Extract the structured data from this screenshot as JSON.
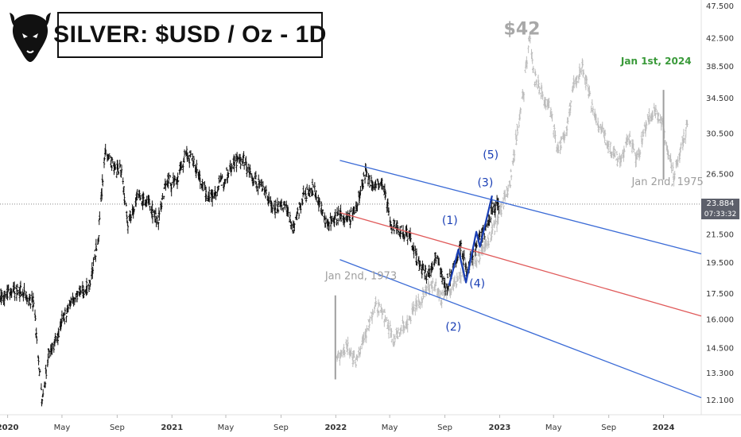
{
  "chart_data": {
    "type": "candlestick",
    "title": "SILVER: $USD / Oz - 1D",
    "y_axis": {
      "scale": "log",
      "ylim": [
        11.5,
        48.5
      ],
      "tick_labels": [
        "47.500",
        "42.500",
        "38.500",
        "34.500",
        "30.500",
        "26.500",
        "21.500",
        "19.500",
        "17.500",
        "16.000",
        "14.500",
        "13.300",
        "12.100"
      ],
      "tick_values": [
        47.5,
        42.5,
        38.5,
        34.5,
        30.5,
        26.5,
        21.5,
        19.5,
        17.5,
        16.0,
        14.5,
        13.3,
        12.1
      ]
    },
    "x_axis": {
      "range": [
        "2019-12-15",
        "2024-03-25"
      ],
      "tick_labels": [
        "2020",
        "May",
        "Sep",
        "2021",
        "May",
        "Sep",
        "2022",
        "May",
        "Sep",
        "2023",
        "May",
        "Sep",
        "2024"
      ],
      "tick_dates": [
        "2020-01-01",
        "2020-05-01",
        "2020-09-01",
        "2021-01-01",
        "2021-05-01",
        "2021-09-01",
        "2022-01-01",
        "2022-05-01",
        "2022-09-01",
        "2023-01-01",
        "2023-05-01",
        "2023-09-01",
        "2024-01-01"
      ]
    },
    "current_price": {
      "value": "23.884",
      "countdown": "07:33:32",
      "y": 23.884
    },
    "series": [
      {
        "style": "ohlc-black",
        "points": [
          {
            "x": "2019-12-15",
            "y": 17.2
          },
          {
            "x": "2020-01-10",
            "y": 17.8
          },
          {
            "x": "2020-02-05",
            "y": 17.6
          },
          {
            "x": "2020-02-28",
            "y": 17.0
          },
          {
            "x": "2020-03-18",
            "y": 12.0
          },
          {
            "x": "2020-04-01",
            "y": 14.2
          },
          {
            "x": "2020-04-20",
            "y": 15.0
          },
          {
            "x": "2020-05-15",
            "y": 16.8
          },
          {
            "x": "2020-06-10",
            "y": 17.6
          },
          {
            "x": "2020-07-01",
            "y": 18.0
          },
          {
            "x": "2020-07-20",
            "y": 21.0
          },
          {
            "x": "2020-08-06",
            "y": 29.0
          },
          {
            "x": "2020-08-25",
            "y": 27.0
          },
          {
            "x": "2020-09-10",
            "y": 27.0
          },
          {
            "x": "2020-09-25",
            "y": 22.5
          },
          {
            "x": "2020-10-15",
            "y": 24.5
          },
          {
            "x": "2020-11-10",
            "y": 24.0
          },
          {
            "x": "2020-11-30",
            "y": 22.5
          },
          {
            "x": "2020-12-20",
            "y": 26.0
          },
          {
            "x": "2021-01-10",
            "y": 25.5
          },
          {
            "x": "2021-02-01",
            "y": 28.5
          },
          {
            "x": "2021-02-20",
            "y": 27.5
          },
          {
            "x": "2021-03-15",
            "y": 25.0
          },
          {
            "x": "2021-04-01",
            "y": 24.5
          },
          {
            "x": "2021-04-25",
            "y": 26.0
          },
          {
            "x": "2021-05-20",
            "y": 27.8
          },
          {
            "x": "2021-06-10",
            "y": 27.8
          },
          {
            "x": "2021-07-01",
            "y": 26.0
          },
          {
            "x": "2021-07-25",
            "y": 25.3
          },
          {
            "x": "2021-08-15",
            "y": 23.5
          },
          {
            "x": "2021-09-10",
            "y": 23.8
          },
          {
            "x": "2021-09-28",
            "y": 22.0
          },
          {
            "x": "2021-10-20",
            "y": 24.5
          },
          {
            "x": "2021-11-15",
            "y": 25.2
          },
          {
            "x": "2021-12-10",
            "y": 22.3
          },
          {
            "x": "2022-01-05",
            "y": 23.0
          },
          {
            "x": "2022-01-28",
            "y": 22.6
          },
          {
            "x": "2022-02-15",
            "y": 23.5
          },
          {
            "x": "2022-03-08",
            "y": 26.5
          },
          {
            "x": "2022-03-25",
            "y": 25.5
          },
          {
            "x": "2022-04-15",
            "y": 25.5
          },
          {
            "x": "2022-05-05",
            "y": 22.3
          },
          {
            "x": "2022-05-25",
            "y": 21.8
          },
          {
            "x": "2022-06-15",
            "y": 21.5
          },
          {
            "x": "2022-07-05",
            "y": 19.3
          },
          {
            "x": "2022-07-25",
            "y": 18.6
          },
          {
            "x": "2022-08-15",
            "y": 20.2
          },
          {
            "x": "2022-09-01",
            "y": 17.8
          },
          {
            "x": "2022-09-20",
            "y": 19.0
          },
          {
            "x": "2022-10-05",
            "y": 20.8
          },
          {
            "x": "2022-10-20",
            "y": 18.8
          },
          {
            "x": "2022-11-10",
            "y": 21.0
          },
          {
            "x": "2022-11-28",
            "y": 21.5
          },
          {
            "x": "2022-12-15",
            "y": 23.5
          },
          {
            "x": "2023-01-01",
            "y": 24.0
          }
        ]
      },
      {
        "style": "ohlc-grey-overlay",
        "points": [
          {
            "x": "2022-01-01",
            "y": 14.0
          },
          {
            "x": "2022-01-25",
            "y": 14.6
          },
          {
            "x": "2022-02-15",
            "y": 13.9
          },
          {
            "x": "2022-03-08",
            "y": 15.2
          },
          {
            "x": "2022-03-30",
            "y": 16.8
          },
          {
            "x": "2022-04-20",
            "y": 16.2
          },
          {
            "x": "2022-05-10",
            "y": 15.0
          },
          {
            "x": "2022-06-01",
            "y": 15.6
          },
          {
            "x": "2022-06-25",
            "y": 16.6
          },
          {
            "x": "2022-07-15",
            "y": 17.4
          },
          {
            "x": "2022-08-05",
            "y": 18.2
          },
          {
            "x": "2022-08-25",
            "y": 17.2
          },
          {
            "x": "2022-09-15",
            "y": 17.8
          },
          {
            "x": "2022-10-05",
            "y": 18.6
          },
          {
            "x": "2022-10-25",
            "y": 19.4
          },
          {
            "x": "2022-11-15",
            "y": 19.8
          },
          {
            "x": "2022-12-05",
            "y": 21.0
          },
          {
            "x": "2022-12-20",
            "y": 22.0
          },
          {
            "x": "2023-01-05",
            "y": 23.5
          },
          {
            "x": "2023-01-25",
            "y": 26.0
          },
          {
            "x": "2023-02-10",
            "y": 31.0
          },
          {
            "x": "2023-02-25",
            "y": 36.0
          },
          {
            "x": "2023-03-08",
            "y": 43.0
          },
          {
            "x": "2023-03-20",
            "y": 37.0
          },
          {
            "x": "2023-04-05",
            "y": 35.0
          },
          {
            "x": "2023-04-25",
            "y": 33.0
          },
          {
            "x": "2023-05-10",
            "y": 28.5
          },
          {
            "x": "2023-05-30",
            "y": 31.0
          },
          {
            "x": "2023-06-15",
            "y": 36.0
          },
          {
            "x": "2023-07-05",
            "y": 38.5
          },
          {
            "x": "2023-07-25",
            "y": 33.5
          },
          {
            "x": "2023-08-15",
            "y": 31.0
          },
          {
            "x": "2023-09-05",
            "y": 29.0
          },
          {
            "x": "2023-09-25",
            "y": 27.5
          },
          {
            "x": "2023-10-15",
            "y": 30.0
          },
          {
            "x": "2023-11-05",
            "y": 28.0
          },
          {
            "x": "2023-11-25",
            "y": 32.0
          },
          {
            "x": "2023-12-15",
            "y": 33.0
          },
          {
            "x": "2023-12-30",
            "y": 31.5
          },
          {
            "x": "2024-01-10",
            "y": 28.5
          },
          {
            "x": "2024-01-25",
            "y": 26.5
          },
          {
            "x": "2024-02-10",
            "y": 29.0
          },
          {
            "x": "2024-02-25",
            "y": 32.0
          }
        ]
      }
    ],
    "channel": {
      "upper": [
        {
          "x": "2022-01-10",
          "y": 27.8
        },
        {
          "x": "2024-03-25",
          "y": 20.1
        }
      ],
      "middle": [
        {
          "x": "2022-01-10",
          "y": 23.2
        },
        {
          "x": "2024-03-25",
          "y": 16.2
        }
      ],
      "lower": [
        {
          "x": "2022-01-10",
          "y": 19.7
        },
        {
          "x": "2024-03-25",
          "y": 12.2
        }
      ]
    },
    "wave_path": [
      {
        "x": "2022-09-10",
        "y": 18.0
      },
      {
        "x": "2022-10-01",
        "y": 20.4
      },
      {
        "x": "2022-10-18",
        "y": 18.2
      },
      {
        "x": "2022-11-10",
        "y": 21.7
      },
      {
        "x": "2022-11-18",
        "y": 20.6
      },
      {
        "x": "2022-12-15",
        "y": 24.6
      }
    ],
    "wave_labels": [
      {
        "text": "(1)",
        "x": "2022-09-12",
        "y": 22.3
      },
      {
        "text": "(2)",
        "x": "2022-09-20",
        "y": 15.4
      },
      {
        "text": "(3)",
        "x": "2022-11-30",
        "y": 25.4
      },
      {
        "text": "(4)",
        "x": "2022-11-12",
        "y": 17.9
      },
      {
        "text": "(5)",
        "x": "2022-12-12",
        "y": 28.0
      }
    ],
    "annotations": [
      {
        "text": "$42",
        "x": "2023-01-10",
        "y": 43.0,
        "style": "big-grey"
      },
      {
        "text": "Jan 2nd, 1973",
        "x": "2021-12-08",
        "y": 18.4,
        "style": "grey"
      },
      {
        "text": "Jan 2nd, 1975",
        "x": "2023-10-22",
        "y": 25.5,
        "style": "grey"
      },
      {
        "text": "Jan 1st, 2024",
        "x": "2023-09-28",
        "y": 38.8,
        "style": "green"
      }
    ],
    "markers": [
      {
        "x": "2021-12-31",
        "from": 13.0,
        "to": 17.4,
        "color": "#9e9e9e"
      },
      {
        "x": "2024-01-01",
        "from": 26.0,
        "to": 35.5,
        "color": "#9e9e9e"
      }
    ],
    "colors": {
      "upper": "#3b6bd6",
      "middle": "#e05a5a",
      "lower": "#3b6bd6",
      "wave": "#1a3fb5",
      "overlay": "#bdbdbd",
      "candles": "#111111"
    }
  }
}
